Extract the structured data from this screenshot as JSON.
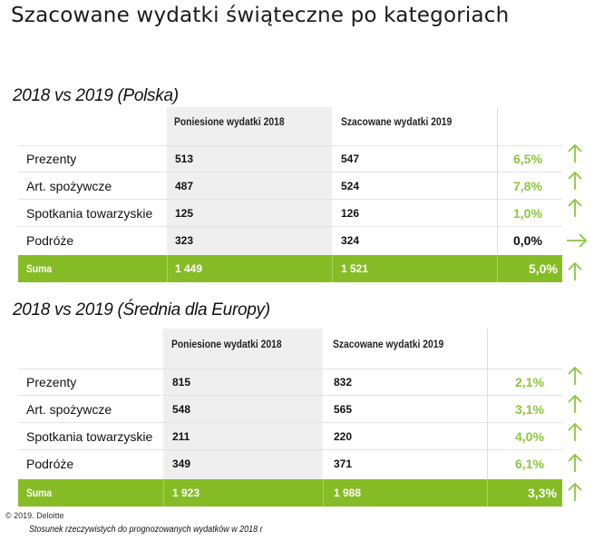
{
  "title": "Szacowane wydatki świąteczne po kategoriach",
  "colors": {
    "accent": "#86bc25",
    "positive": "#8cc63f"
  },
  "tables": [
    {
      "heading": "2018 vs 2019 (Polska)",
      "col_2018": "Poniesione wydatki 2018",
      "col_2019": "Szacowane wydatki 2019",
      "rows": [
        {
          "category": "Prezenty",
          "v2018": "513",
          "v2019": "547",
          "change": "6,5%",
          "trend": "up-arrow-icon"
        },
        {
          "category": "Art. spożywcze",
          "v2018": "487",
          "v2019": "524",
          "change": "7,8%",
          "trend": "up-arrow-icon"
        },
        {
          "category": "Spotkania towarzyskie",
          "v2018": "125",
          "v2019": "126",
          "change": "1,0%",
          "trend": "up-arrow-icon"
        },
        {
          "category": "Podróże",
          "v2018": "323",
          "v2019": "324",
          "change": "0,0%",
          "trend": "right-arrow-icon"
        }
      ],
      "total": {
        "label": "Suma",
        "v2018": "1 449",
        "v2019": "1 521",
        "change": "5,0%",
        "trend": "up-arrow-icon"
      }
    },
    {
      "heading": "2018 vs 2019 (Średnia dla Europy)",
      "col_2018": "Poniesione wydatki 2018",
      "col_2019": "Szacowane wydatki 2019",
      "rows": [
        {
          "category": "Prezenty",
          "v2018": "815",
          "v2019": "832",
          "change": "2,1%",
          "trend": "up-arrow-icon"
        },
        {
          "category": "Art. spożywcze",
          "v2018": "548",
          "v2019": "565",
          "change": "3,1%",
          "trend": "up-arrow-icon"
        },
        {
          "category": "Spotkania towarzyskie",
          "v2018": "211",
          "v2019": "220",
          "change": "4,0%",
          "trend": "up-arrow-icon"
        },
        {
          "category": "Podróże",
          "v2018": "349",
          "v2019": "371",
          "change": "6,1%",
          "trend": "up-arrow-icon"
        }
      ],
      "total": {
        "label": "Suma",
        "v2018": "1 923",
        "v2019": "1 988",
        "change": "3,3%",
        "trend": "up-arrow-icon"
      }
    }
  ],
  "footer": {
    "copyright": "© 2019. Deloitte",
    "note": "Stosunek rzeczywistych do prognozowanych wydatków w 2018 r"
  }
}
